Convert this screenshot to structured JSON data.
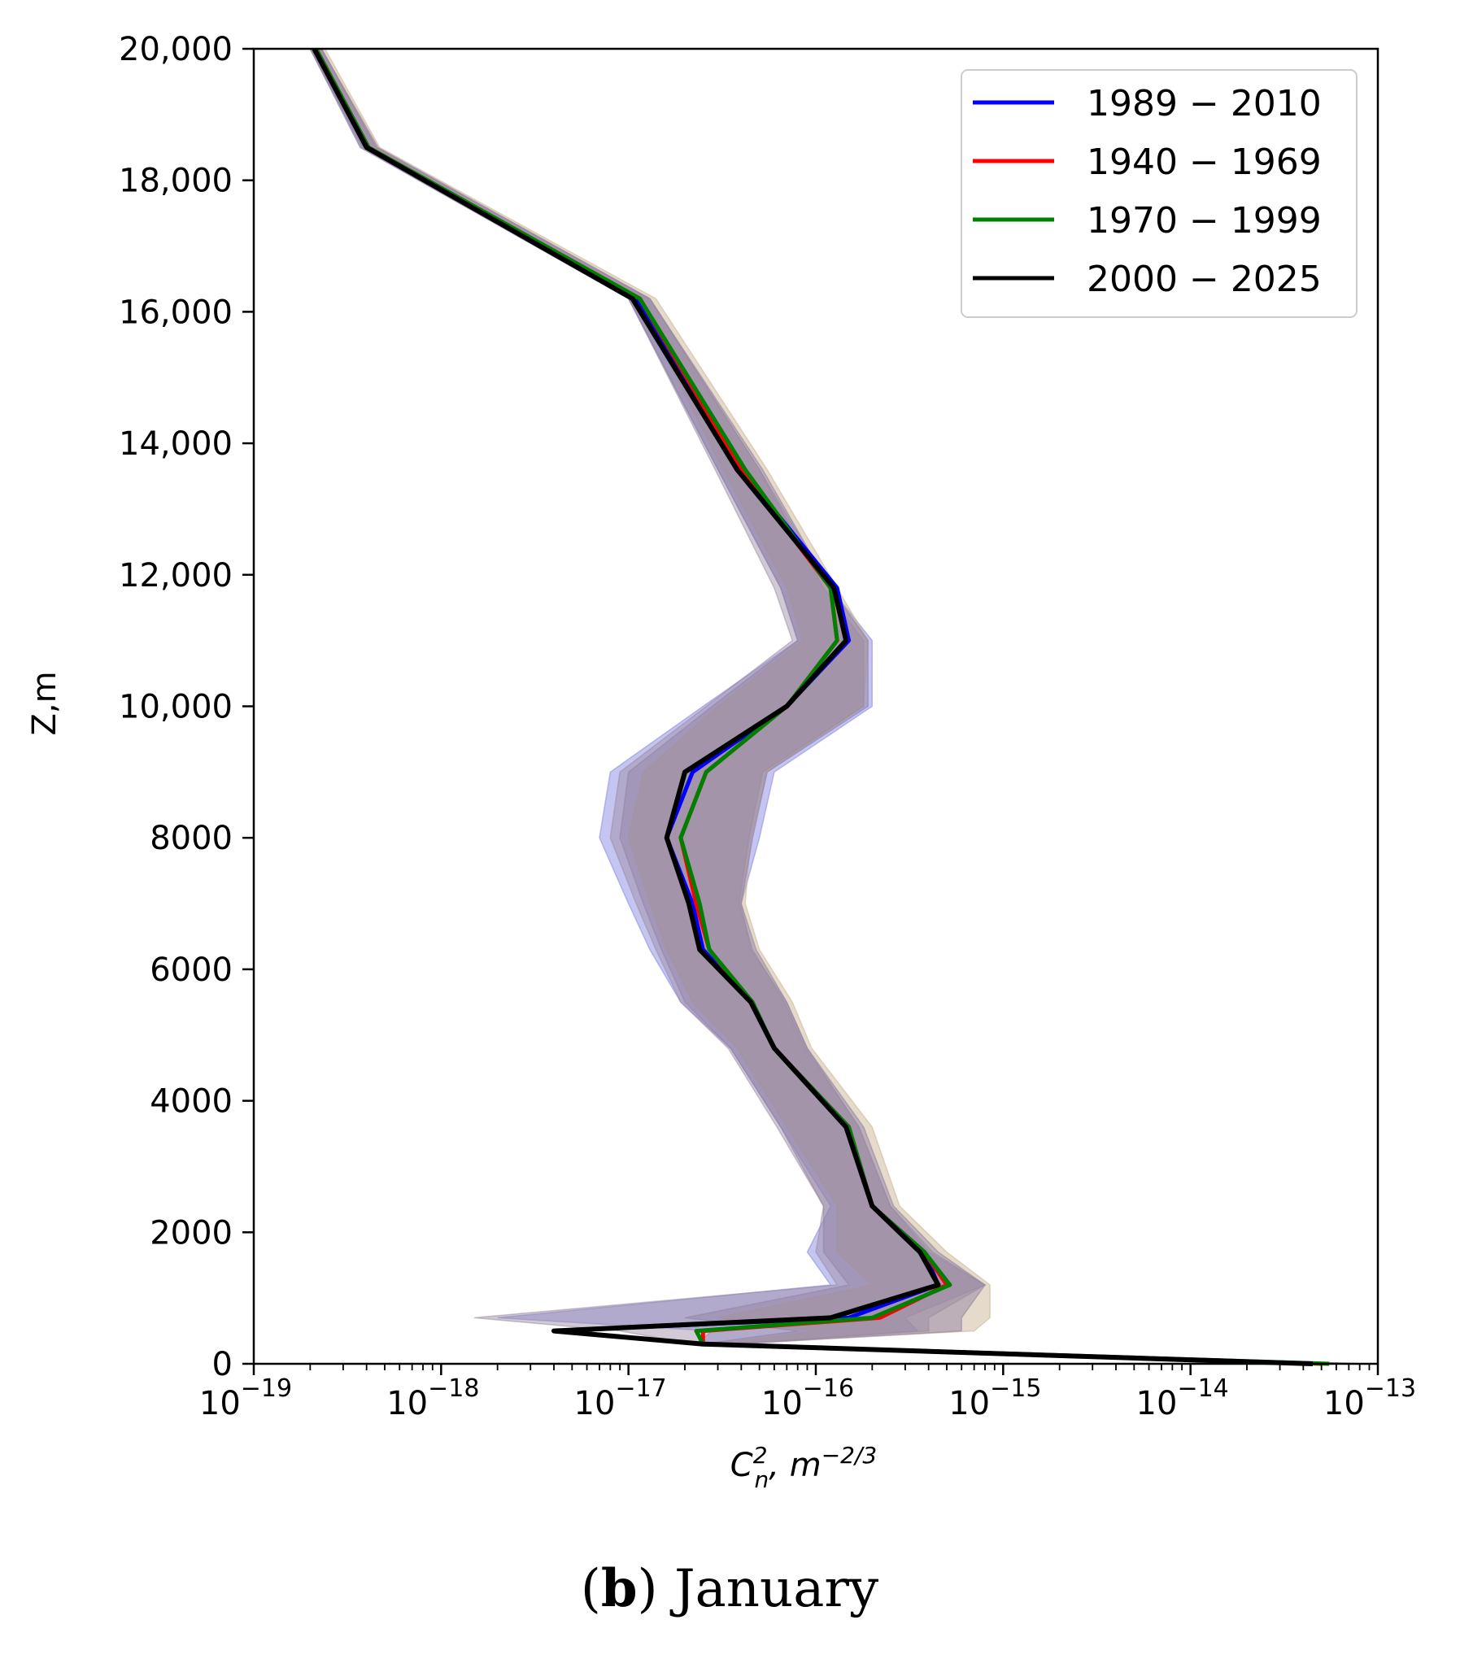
{
  "chart_data": {
    "type": "line",
    "xscale": "log",
    "xlim": [
      1e-19,
      1e-13
    ],
    "ylim": [
      0,
      20000
    ],
    "xlabel": {
      "main": "C",
      "sup": "2",
      "sub": "n",
      "unit": ", m",
      "unit_sup": "−2/3"
    },
    "ylabel": "Z,m",
    "x_tick_labels": [
      {
        "value": 1e-19,
        "base": "10",
        "exp": "−19"
      },
      {
        "value": 1e-18,
        "base": "10",
        "exp": "−18"
      },
      {
        "value": 1e-17,
        "base": "10",
        "exp": "−17"
      },
      {
        "value": 1e-16,
        "base": "10",
        "exp": "−16"
      },
      {
        "value": 1e-15,
        "base": "10",
        "exp": "−15"
      },
      {
        "value": 1e-14,
        "base": "10",
        "exp": "−14"
      },
      {
        "value": 1e-13,
        "base": "10",
        "exp": "−13"
      }
    ],
    "y_tick_labels": [
      {
        "value": 0,
        "label": "0"
      },
      {
        "value": 2000,
        "label": "2000"
      },
      {
        "value": 4000,
        "label": "4000"
      },
      {
        "value": 6000,
        "label": "6000"
      },
      {
        "value": 8000,
        "label": "8000"
      },
      {
        "value": 10000,
        "label": "10,000"
      },
      {
        "value": 12000,
        "label": "12,000"
      },
      {
        "value": 14000,
        "label": "14,000"
      },
      {
        "value": 16000,
        "label": "16,000"
      },
      {
        "value": 18000,
        "label": "18,000"
      },
      {
        "value": 20000,
        "label": "20,000"
      }
    ],
    "legend_position": "top-right",
    "series": [
      {
        "name": "1989 − 2010",
        "color": "#0000ff",
        "band_color": "#7f7fdf",
        "band_low": [
          2e-14,
          2.3e-17,
          2.8e-17,
          2e-18,
          1.2e-16,
          9e-17,
          1.2e-16,
          6.5e-17,
          3.5e-17,
          1.9e-17,
          1.3e-17,
          1e-17,
          7e-18,
          8e-18,
          2.5e-17,
          8e-17,
          6.5e-17,
          3e-17,
          1e-17,
          3.7e-19,
          2e-19
        ],
        "band_high": [
          8e-14,
          4e-17,
          3.5e-16,
          3e-16,
          8e-16,
          4e-16,
          2.5e-16,
          1.7e-16,
          9e-17,
          7e-17,
          4.5e-17,
          4e-17,
          5e-17,
          6e-17,
          2e-16,
          2e-16,
          1.2e-16,
          5e-17,
          1.3e-17,
          4.5e-19,
          2.3e-19
        ]
      },
      {
        "name": "1940 − 1969",
        "color": "#ff0000",
        "band_color": "#c8b08a",
        "band_low": [
          3e-14,
          3e-17,
          1e-16,
          3e-17,
          2e-16,
          1.3e-16,
          1.3e-16,
          7e-17,
          3.8e-17,
          2.2e-17,
          1.6e-17,
          1.3e-17,
          1e-17,
          1.2e-17,
          3e-17,
          8.5e-17,
          7e-17,
          3.2e-17,
          1.1e-17,
          3.9e-19,
          2.1e-19
        ],
        "band_high": [
          9e-14,
          3.5e-17,
          7e-16,
          8.5e-16,
          8.5e-16,
          5e-16,
          2.8e-16,
          2e-16,
          9.5e-17,
          7.5e-17,
          5e-17,
          4.2e-17,
          4.5e-17,
          5.5e-17,
          1.8e-16,
          1.9e-16,
          1.3e-16,
          5.5e-17,
          1.4e-17,
          4.7e-19,
          2.4e-19
        ]
      },
      {
        "name": "1970 − 1999",
        "color": "#008000",
        "band_color": "#8a7aa0",
        "band_low": [
          3e-14,
          2.5e-17,
          8e-17,
          2e-17,
          1.5e-16,
          1.1e-16,
          1.1e-16,
          6.5e-17,
          3.5e-17,
          2e-17,
          1.5e-17,
          1.2e-17,
          9e-18,
          1e-17,
          2.8e-17,
          8e-17,
          6.5e-17,
          3e-17,
          1e-17,
          3.8e-19,
          2e-19
        ],
        "band_high": [
          8.5e-14,
          3.8e-17,
          6e-16,
          6e-16,
          8e-16,
          4.5e-16,
          2.6e-16,
          1.8e-16,
          9e-17,
          7e-17,
          4.8e-17,
          4e-17,
          4.6e-17,
          5.5e-17,
          1.9e-16,
          1.9e-16,
          1.2e-16,
          5.2e-17,
          1.3e-17,
          4.6e-19,
          2.3e-19
        ]
      },
      {
        "name": "2000 − 2025",
        "color": "#000000",
        "band_color": "#9a8aa0",
        "band_low": [
          3e-14,
          2.2e-17,
          9e-18,
          1.5e-18,
          1.3e-16,
          1e-16,
          1.1e-16,
          6.2e-17,
          3.4e-17,
          1.9e-17,
          1.4e-17,
          1.1e-17,
          8e-18,
          9e-18,
          2.6e-17,
          7.5e-17,
          6e-17,
          2.9e-17,
          1e-17,
          3.7e-19,
          2e-19
        ],
        "band_high": [
          8e-14,
          3.5e-17,
          4e-16,
          4e-16,
          8e-16,
          4.2e-16,
          2.5e-16,
          1.7e-16,
          8.8e-17,
          6.8e-17,
          4.6e-17,
          3.9e-17,
          4.4e-17,
          5.2e-17,
          1.8e-16,
          1.8e-16,
          1.1e-16,
          5e-17,
          1.3e-17,
          4.5e-19,
          2.3e-19
        ]
      }
    ],
    "heights": [
      0,
      300,
      500,
      700,
      1200,
      1700,
      2400,
      3600,
      4800,
      5500,
      6300,
      7000,
      8000,
      9000,
      10000,
      11000,
      11800,
      13600,
      16200,
      18500,
      20000
    ],
    "profiles": {
      "1989 − 2010": [
        4.5e-14,
        2.5e-17,
        4e-18,
        1.5e-16,
        4.5e-16,
        3.8e-16,
        2e-16,
        1.5e-16,
        6e-17,
        4.5e-17,
        2.5e-17,
        2.2e-17,
        1.6e-17,
        2.2e-17,
        7e-17,
        1.5e-16,
        1.3e-16,
        4e-17,
        1.1e-17,
        4e-19,
        2.1e-19
      ],
      "1940 − 1969": [
        5e-14,
        2.5e-17,
        2.5e-17,
        2.2e-16,
        5e-16,
        3.8e-16,
        2e-16,
        1.5e-16,
        6e-17,
        4.5e-17,
        2.7e-17,
        2.3e-17,
        1.9e-17,
        2.6e-17,
        7e-17,
        1.3e-16,
        1.2e-16,
        4e-17,
        1.15e-17,
        4.1e-19,
        2.15e-19
      ],
      "1970 − 1999": [
        5.5e-14,
        2.5e-17,
        2.3e-17,
        2e-16,
        5.2e-16,
        3.8e-16,
        2e-16,
        1.5e-16,
        6e-17,
        4.6e-17,
        2.7e-17,
        2.4e-17,
        1.9e-17,
        2.6e-17,
        7e-17,
        1.3e-16,
        1.2e-16,
        4.2e-17,
        1.15e-17,
        4.1e-19,
        2.15e-19
      ],
      "2000 − 2025": [
        4.5e-14,
        2.5e-17,
        4e-18,
        1.2e-16,
        4.5e-16,
        3.6e-16,
        2e-16,
        1.45e-16,
        6e-17,
        4.5e-17,
        2.4e-17,
        2.1e-17,
        1.6e-17,
        2e-17,
        7e-17,
        1.45e-16,
        1.25e-16,
        3.8e-17,
        1.05e-17,
        4e-19,
        2.1e-19
      ]
    }
  },
  "caption": {
    "letter": "b",
    "text": " January"
  }
}
